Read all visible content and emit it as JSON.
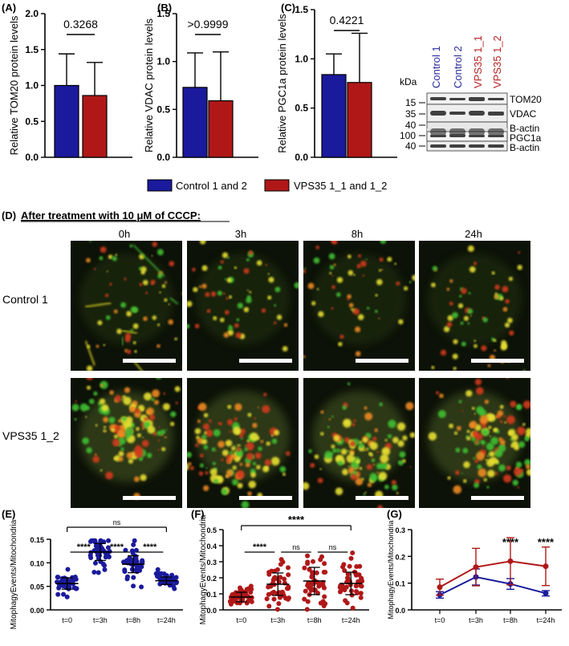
{
  "colors": {
    "control": "#1a1a9c",
    "vps35": "#b01818",
    "control_text": "#2b2b9b",
    "vps35_text": "#b52020"
  },
  "panels": {
    "a": {
      "label": "(A)",
      "ylabel": "Relative TOM20 protein levels",
      "pvalue": "0.3268"
    },
    "b": {
      "label": "(B)",
      "ylabel": "Relative VDAC protein levels",
      "pvalue": ">0.9999"
    },
    "c": {
      "label": "(C)",
      "ylabel": "Relative PGC1a protein levels",
      "pvalue": "0.4221"
    },
    "d": {
      "label": "(D)",
      "title": "After treatment with 10 μM of CCCP:"
    },
    "e": {
      "label": "(E)",
      "ylabel": "MitophagyEvents/Mitochondria"
    },
    "f": {
      "label": "(F)",
      "ylabel": "MitophagyEvents/Mitochondria"
    },
    "g": {
      "label": "(G)",
      "ylabel": "MitophagyEvents/Mitochondria"
    }
  },
  "legend": {
    "control": "Control 1 and 2",
    "vps35": "VPS35 1_1 and 1_2"
  },
  "blot": {
    "kda_label": "kDa",
    "lanes": [
      "Control 1",
      "Control 2",
      "VPS35 1_1",
      "VPS35 1_2"
    ],
    "markers": [
      "15",
      "35",
      "40",
      "100",
      "40"
    ],
    "bands": [
      "TOM20",
      "VDAC",
      "B-actin",
      "PGC1a",
      "B-actin"
    ]
  },
  "microscopy": {
    "timepoints": [
      "0h",
      "3h",
      "8h",
      "24h"
    ],
    "rows": [
      "Control 1",
      "VPS35 1_2"
    ]
  },
  "chart_data": [
    {
      "panel": "A",
      "type": "bar",
      "categories": [
        "Control 1 and 2",
        "VPS35 1_1 and 1_2"
      ],
      "values": [
        1.0,
        0.86
      ],
      "errors": [
        0.44,
        0.46
      ],
      "ylabel": "Relative TOM20 protein levels",
      "ylim": [
        0,
        2.0
      ],
      "yticks": [
        "0.0",
        "0.5",
        "1.0",
        "1.5",
        "2.0"
      ],
      "annotation": "0.3268"
    },
    {
      "panel": "B",
      "type": "bar",
      "categories": [
        "Control 1 and 2",
        "VPS35 1_1 and 1_2"
      ],
      "values": [
        0.73,
        0.59
      ],
      "errors": [
        0.36,
        0.51
      ],
      "ylabel": "Relative VDAC protein levels",
      "ylim": [
        0,
        1.5
      ],
      "yticks": [
        "0.0",
        "0.5",
        "1.0",
        "1.5"
      ],
      "annotation": ">0.9999"
    },
    {
      "panel": "C",
      "type": "bar",
      "categories": [
        "Control 1 and 2",
        "VPS35 1_1 and 1_2"
      ],
      "values": [
        0.84,
        0.76
      ],
      "errors": [
        0.21,
        0.5
      ],
      "ylabel": "Relative PGC1a protein levels",
      "ylim": [
        0,
        1.5
      ],
      "yticks": [
        "0.0",
        "0.5",
        "1.0",
        "1.5"
      ],
      "annotation": "0.4221"
    },
    {
      "panel": "E",
      "type": "scatter",
      "categories": [
        "t=0",
        "t=3h",
        "t=8h",
        "t=24h"
      ],
      "means": [
        0.056,
        0.123,
        0.097,
        0.062
      ],
      "sd": [
        0.012,
        0.018,
        0.018,
        0.008
      ],
      "n_points": 45,
      "ylabel": "MitophagyEvents/Mitochondria",
      "ylim": [
        0,
        0.15
      ],
      "yticks": [
        "0.00",
        "0.05",
        "0.10",
        "0.15"
      ],
      "comparisons": [
        {
          "from": "t=0",
          "to": "t=3h",
          "label": "****"
        },
        {
          "from": "t=3h",
          "to": "t=8h",
          "label": "****"
        },
        {
          "from": "t=8h",
          "to": "t=24h",
          "label": "****"
        },
        {
          "from": "t=0",
          "to": "t=24h",
          "label": "ns"
        }
      ]
    },
    {
      "panel": "F",
      "type": "scatter",
      "categories": [
        "t=0",
        "t=3h",
        "t=8h",
        "t=24h"
      ],
      "means": [
        0.08,
        0.16,
        0.18,
        0.165
      ],
      "sd": [
        0.03,
        0.07,
        0.085,
        0.07
      ],
      "n_points": 45,
      "ylabel": "MitophagyEvents/Mitochondria",
      "ylim": [
        0,
        0.5
      ],
      "yticks": [
        "0.0",
        "0.1",
        "0.2",
        "0.3",
        "0.4",
        "0.5"
      ],
      "comparisons": [
        {
          "from": "t=0",
          "to": "t=3h",
          "label": "****"
        },
        {
          "from": "t=3h",
          "to": "t=8h",
          "label": "ns"
        },
        {
          "from": "t=8h",
          "to": "t=24h",
          "label": "ns"
        },
        {
          "from": "t=0",
          "to": "t=24h",
          "label": "****"
        }
      ]
    },
    {
      "panel": "G",
      "type": "line",
      "categories": [
        "t=0",
        "t=3h",
        "t=8h",
        "t=24h"
      ],
      "series": [
        {
          "values": [
            0.056,
            0.123,
            0.097,
            0.062
          ],
          "errors": [
            0.012,
            0.03,
            0.02,
            0.01
          ]
        },
        {
          "values": [
            0.085,
            0.16,
            0.182,
            0.163
          ],
          "errors": [
            0.03,
            0.07,
            0.088,
            0.072
          ]
        }
      ],
      "ylabel": "MitophagyEvents/Mitochondria",
      "ylim": [
        0,
        0.3
      ],
      "yticks": [
        "0.0",
        "0.1",
        "0.2",
        "0.3"
      ],
      "significance": [
        {
          "at": "t=8h",
          "label": "****"
        },
        {
          "at": "t=24h",
          "label": "****"
        }
      ]
    }
  ]
}
